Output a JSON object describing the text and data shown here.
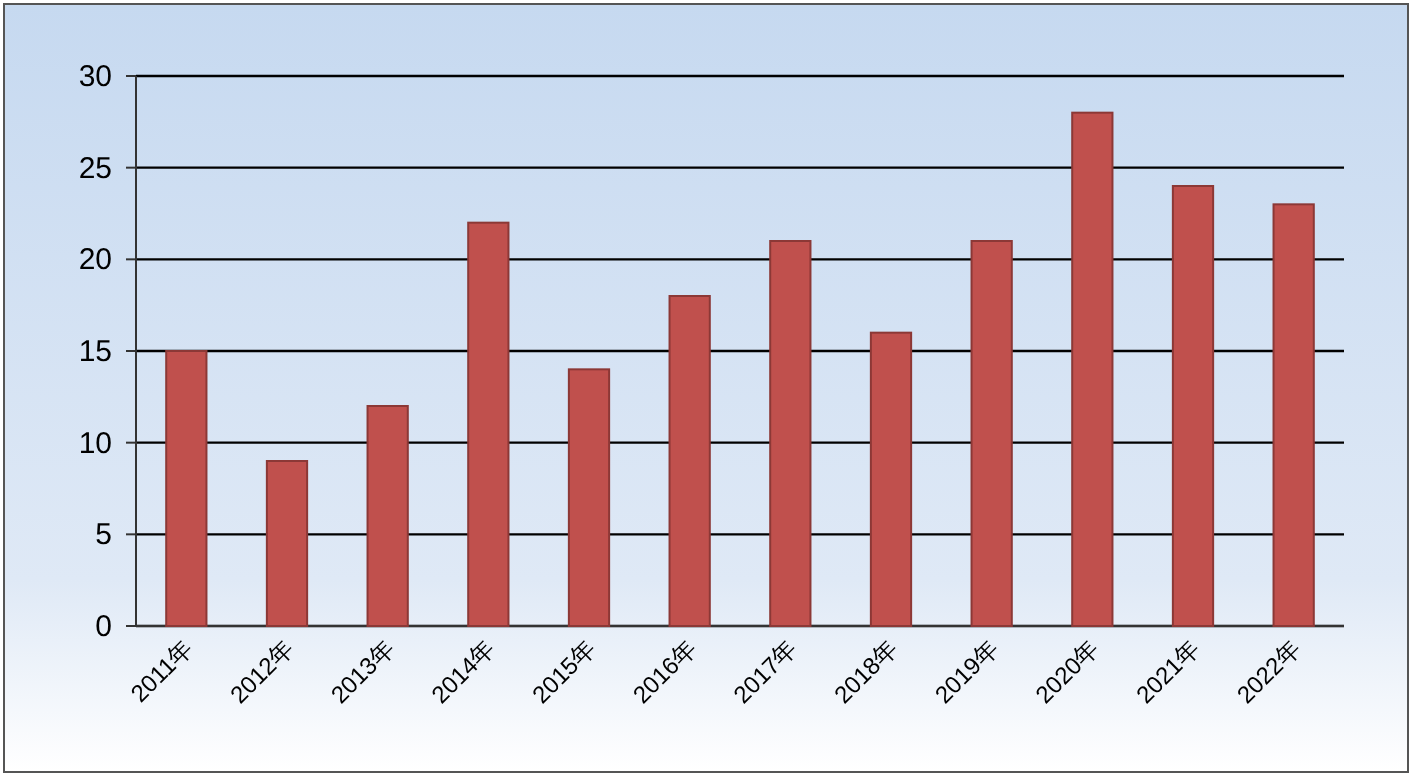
{
  "chart_data": {
    "type": "bar",
    "categories": [
      "2011年",
      "2012年",
      "2013年",
      "2014年",
      "2015年",
      "2016年",
      "2017年",
      "2018年",
      "2019年",
      "2020年",
      "2021年",
      "2022年"
    ],
    "values": [
      15,
      9,
      12,
      22,
      14,
      18,
      21,
      16,
      21,
      28,
      24,
      23
    ],
    "color": "#c0504d",
    "ylim": [
      0,
      30
    ],
    "yticks": [
      0,
      5,
      10,
      15,
      20,
      25,
      30
    ],
    "grid": "y"
  }
}
